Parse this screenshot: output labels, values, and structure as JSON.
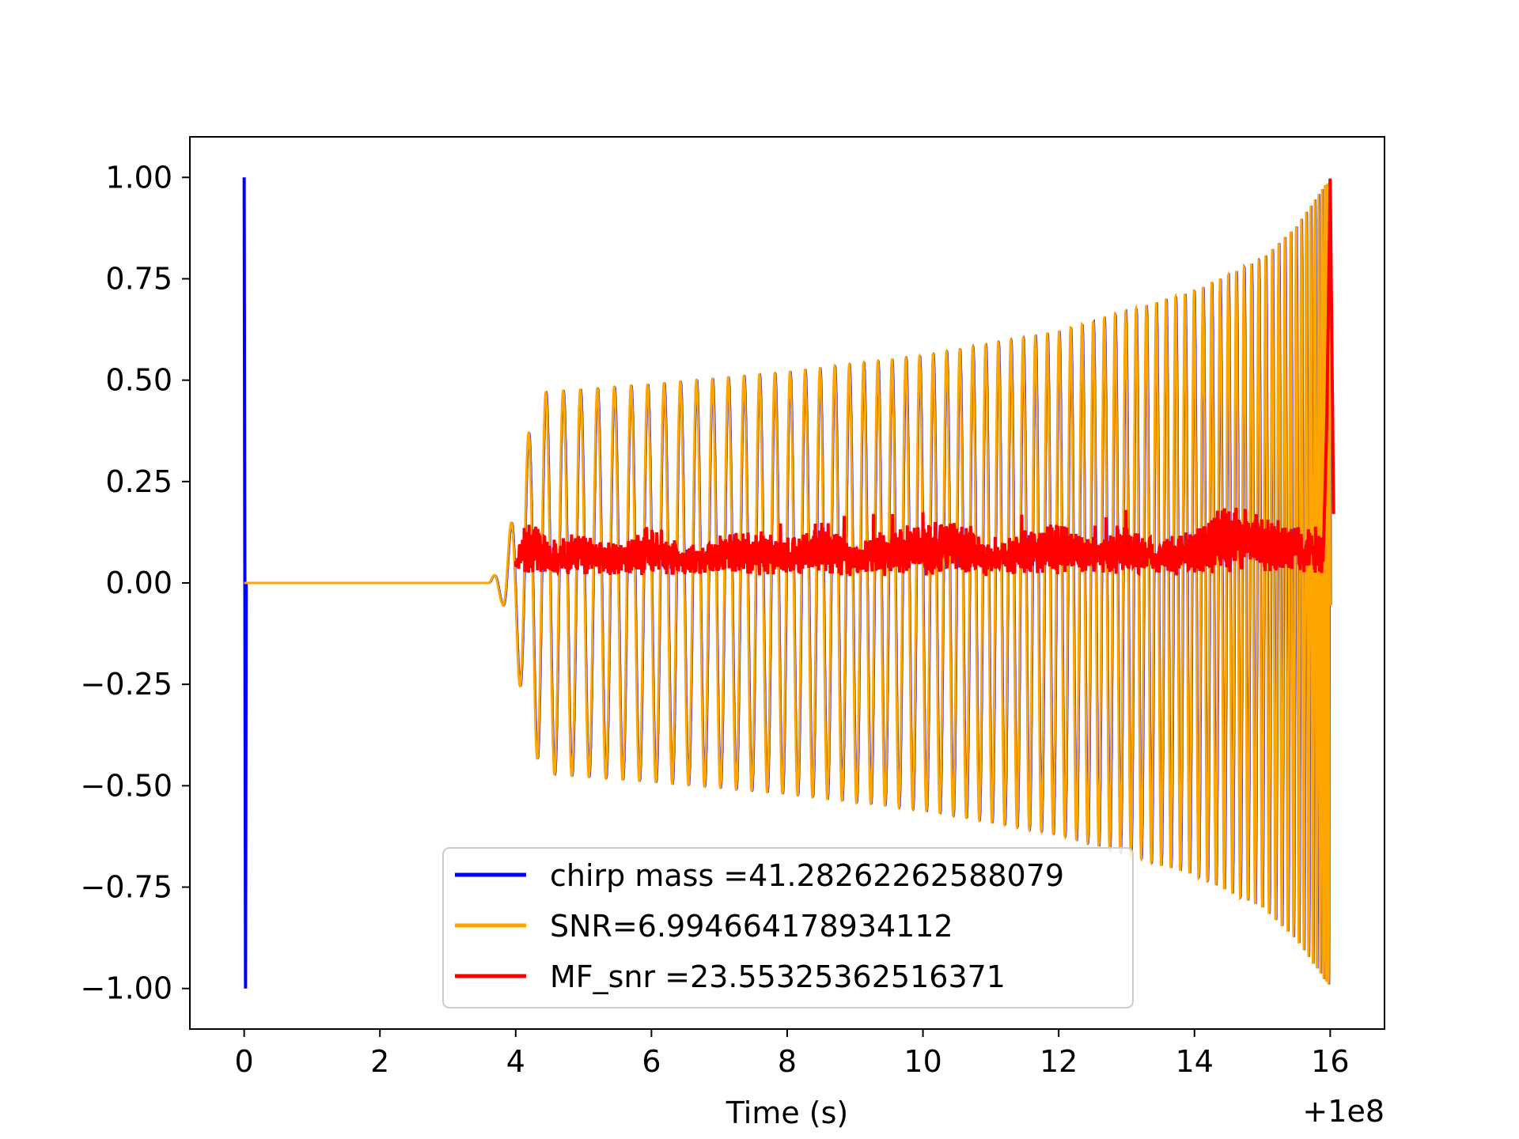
{
  "chart_data": {
    "type": "line",
    "title": "",
    "xlabel": "Time (s)",
    "ylabel": "",
    "x_offset_label": "+1e8",
    "xlim": [
      -0.8,
      16.8
    ],
    "ylim": [
      -1.1,
      1.1
    ],
    "xticks": [
      0,
      2,
      4,
      6,
      8,
      10,
      12,
      14,
      16
    ],
    "xtick_labels": [
      "0",
      "2",
      "4",
      "6",
      "8",
      "10",
      "12",
      "14",
      "16"
    ],
    "yticks": [
      1.0,
      0.75,
      0.5,
      0.25,
      0.0,
      -0.25,
      -0.5,
      -0.75,
      -1.0
    ],
    "ytick_labels": [
      "1.00",
      "0.75",
      "0.50",
      "0.25",
      "0.00",
      "−0.25",
      "−0.50",
      "−0.75",
      "−1.00"
    ],
    "grid": false,
    "legend_position": "lower-center",
    "series": [
      {
        "name": "chirp mass =41.28262262588079",
        "color": "#0000ff",
        "description_points": {
          "x": [
            0,
            0.02,
            0.05
          ],
          "y": [
            1.0,
            -1.0,
            0.0
          ]
        }
      },
      {
        "name": "SNR=6.994664178934112",
        "color": "#ffa500",
        "envelope": {
          "x": [
            3.6,
            3.8,
            4.0,
            4.2,
            4.4,
            6,
            8,
            10,
            12,
            14,
            15,
            15.5,
            16.0
          ],
          "amplitude": [
            0.0,
            0.05,
            0.2,
            0.38,
            0.47,
            0.49,
            0.52,
            0.56,
            0.62,
            0.72,
            0.8,
            0.88,
            1.0
          ]
        }
      },
      {
        "name": "MF_snr =23.55325362516371",
        "color": "#ff0000",
        "x": [
          4.0,
          4.2,
          4.5,
          5,
          5.5,
          6,
          6.5,
          7,
          7.5,
          8,
          8.5,
          9,
          9.5,
          10,
          10.5,
          11,
          11.5,
          12,
          12.5,
          13,
          13.5,
          14,
          14.5,
          15,
          15.5,
          15.9,
          15.95,
          16.0,
          16.05
        ],
        "y": [
          0.05,
          0.14,
          0.07,
          0.1,
          0.06,
          0.12,
          0.05,
          0.09,
          0.1,
          0.08,
          0.13,
          0.07,
          0.1,
          0.12,
          0.15,
          0.06,
          0.1,
          0.13,
          0.08,
          0.12,
          0.07,
          0.11,
          0.18,
          0.14,
          0.12,
          0.08,
          0.4,
          1.0,
          0.17
        ]
      }
    ]
  }
}
